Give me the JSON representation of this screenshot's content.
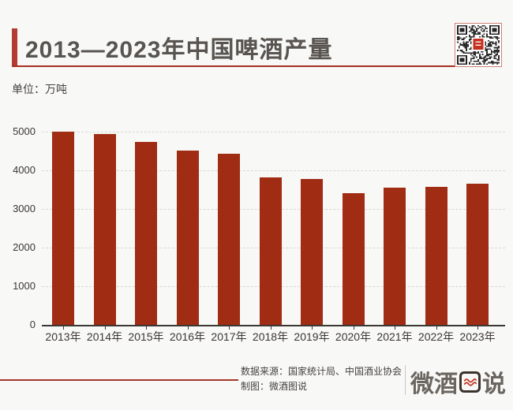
{
  "page": {
    "background": "#F8F8F6"
  },
  "header": {
    "title": "2013—2023年中国啤酒产量",
    "accent_color": "#B23C31",
    "underline_color": "#A52F20",
    "qr_icon": "qr-code"
  },
  "unit_label": "单位：万吨",
  "chart_data": {
    "type": "bar",
    "title": "2013—2023年中国啤酒产量",
    "ylabel_unit": "万吨",
    "categories": [
      "2013年",
      "2014年",
      "2015年",
      "2016年",
      "2017年",
      "2018年",
      "2019年",
      "2020年",
      "2021年",
      "2022年",
      "2023年"
    ],
    "values": [
      5000,
      4940,
      4730,
      4520,
      4420,
      3810,
      3770,
      3410,
      3560,
      3580,
      3650
    ],
    "yticks": [
      0,
      1000,
      2000,
      3000,
      4000,
      5000
    ],
    "ylim": [
      0,
      5000
    ],
    "grid": "dashed-horizontal",
    "legend": "none",
    "bar_color": "#A02C13",
    "axis_color": "#3B3734"
  },
  "footer": {
    "source_line": "数据来源：国家统计局、中国酒业协会",
    "credit_line": "制图：微酒图说",
    "logo_text_before": "微酒",
    "logo_text_after": "说",
    "logo_box_icon": "red-waves",
    "rule_color": "#A3392B"
  }
}
